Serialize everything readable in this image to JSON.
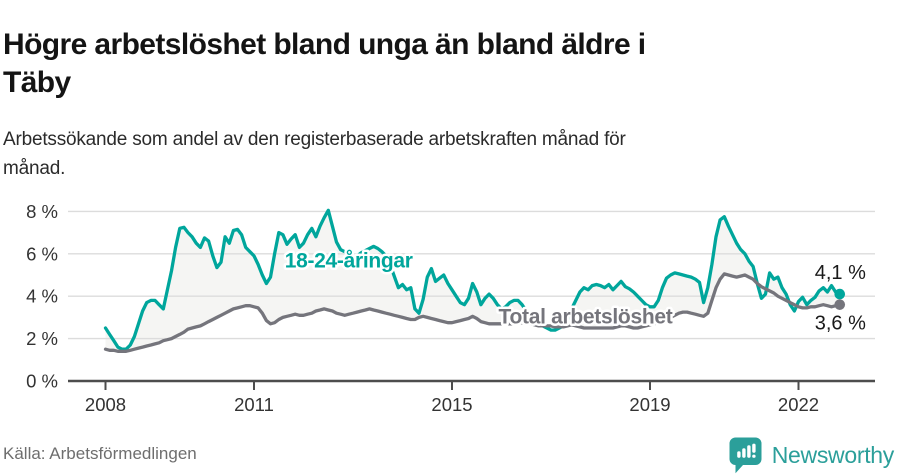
{
  "header": {
    "title": "Högre arbetslöshet bland unga än bland äldre i Täby",
    "title_lines": [
      "Högre arbetslöshet bland unga än bland äldre i",
      "Täby"
    ],
    "subtitle": "Arbetssökande som andel av den registerbaserade arbetskraften månad för månad.",
    "subtitle_lines": [
      "Arbetssökande som andel av den registerbaserade arbetskraften månad för",
      "månad."
    ]
  },
  "footer": {
    "source": "Källa: Arbetsförmedlingen",
    "brand_name": "Newsworthy",
    "brand_icon": "newsworthy-speech-bubble-bars-icon"
  },
  "colors": {
    "youth_teal": "#00a69c",
    "total_gray": "#75757c",
    "fill_between": "#f5f5f3",
    "grid": "#dcdcdc",
    "axis": "#4d4d4d",
    "tick_text": "#333333",
    "brand_teal": "#2b9f9a",
    "end_label_text": "#1a1a1a"
  },
  "chart_data": {
    "type": "line",
    "title": "Högre arbetslöshet bland unga än bland äldre i Täby",
    "xlabel": "",
    "ylabel": "Arbetssökande som andel av den registerbaserade arbetskraften",
    "x_unit": "month",
    "x_range_years": [
      2008.0,
      2022.917
    ],
    "interval": "monthly, Jan 2008 – Nov 2022",
    "ylim": [
      0,
      8.5
    ],
    "grid": true,
    "grid_values": [
      2,
      4,
      6,
      8
    ],
    "y_ticks": [
      {
        "value": 0,
        "label": "0 %"
      },
      {
        "value": 2,
        "label": "2 %"
      },
      {
        "value": 4,
        "label": "4 %"
      },
      {
        "value": 6,
        "label": "6 %"
      },
      {
        "value": 8,
        "label": "8 %"
      }
    ],
    "x_ticks": [
      {
        "value": 2008,
        "label": "2008"
      },
      {
        "value": 2011,
        "label": "2011"
      },
      {
        "value": 2015,
        "label": "2015"
      },
      {
        "value": 2019,
        "label": "2019"
      },
      {
        "value": 2022,
        "label": "2022"
      }
    ],
    "legend_position": "inline-labels",
    "series": [
      {
        "name": "18-24-åringar",
        "color": "#00a69c",
        "end_label": "4,1 %",
        "end_value": 4.1,
        "label_pos": {
          "x": 2011.62,
          "y": 5.35
        },
        "start_year": 2008,
        "values": [
          2.5,
          2.2,
          1.9,
          1.6,
          1.5,
          1.5,
          1.7,
          2.1,
          2.7,
          3.3,
          3.7,
          3.8,
          3.8,
          3.6,
          3.4,
          4.3,
          5.2,
          6.3,
          7.2,
          7.25,
          7.0,
          6.8,
          6.5,
          6.3,
          6.75,
          6.6,
          5.9,
          5.35,
          5.6,
          6.8,
          6.5,
          7.1,
          7.15,
          6.9,
          6.3,
          6.1,
          5.9,
          5.5,
          5.0,
          4.6,
          4.9,
          6.0,
          7.0,
          6.9,
          6.45,
          6.7,
          6.9,
          6.3,
          6.5,
          6.9,
          7.2,
          6.8,
          7.3,
          7.7,
          8.05,
          7.3,
          6.55,
          6.2,
          6.1,
          6.0,
          5.8,
          5.9,
          6.05,
          6.15,
          6.25,
          6.35,
          6.25,
          6.1,
          5.9,
          5.5,
          4.95,
          4.4,
          4.55,
          4.3,
          4.4,
          3.4,
          3.2,
          3.85,
          4.9,
          5.3,
          4.7,
          4.85,
          5.0,
          4.6,
          4.3,
          4.0,
          3.7,
          3.6,
          3.9,
          4.6,
          4.2,
          3.6,
          3.9,
          4.1,
          3.9,
          3.6,
          3.4,
          3.5,
          3.7,
          3.8,
          3.8,
          3.6,
          3.3,
          3.0,
          2.8,
          2.7,
          2.6,
          2.5,
          2.4,
          2.4,
          2.5,
          2.6,
          2.9,
          3.4,
          3.8,
          4.2,
          4.4,
          4.3,
          4.5,
          4.55,
          4.5,
          4.4,
          4.55,
          4.3,
          4.5,
          4.7,
          4.45,
          4.35,
          4.2,
          4.0,
          3.8,
          3.6,
          3.5,
          3.5,
          3.8,
          4.4,
          4.85,
          5.0,
          5.1,
          5.05,
          5.0,
          4.95,
          4.9,
          4.8,
          4.65,
          3.7,
          4.4,
          5.5,
          6.8,
          7.6,
          7.75,
          7.3,
          6.9,
          6.5,
          6.2,
          6.0,
          5.65,
          5.4,
          4.6,
          3.9,
          4.1,
          5.1,
          4.8,
          4.9,
          4.4,
          4.1,
          3.6,
          3.3,
          3.75,
          3.95,
          3.6,
          3.8,
          3.95,
          4.25,
          4.4,
          4.2,
          4.5,
          4.2,
          4.1
        ]
      },
      {
        "name": "Total arbetslöshet",
        "color": "#75757c",
        "end_label": "3,6 %",
        "end_value": 3.6,
        "label_pos": {
          "x": 2015.94,
          "y": 2.72
        },
        "start_year": 2008,
        "values": [
          1.5,
          1.45,
          1.45,
          1.4,
          1.4,
          1.4,
          1.45,
          1.5,
          1.55,
          1.6,
          1.65,
          1.7,
          1.75,
          1.8,
          1.9,
          1.95,
          2.0,
          2.1,
          2.2,
          2.3,
          2.45,
          2.5,
          2.55,
          2.6,
          2.7,
          2.8,
          2.9,
          3.0,
          3.1,
          3.2,
          3.3,
          3.4,
          3.45,
          3.5,
          3.55,
          3.55,
          3.5,
          3.45,
          3.2,
          2.85,
          2.7,
          2.75,
          2.9,
          3.0,
          3.05,
          3.1,
          3.15,
          3.1,
          3.1,
          3.15,
          3.2,
          3.3,
          3.35,
          3.4,
          3.35,
          3.3,
          3.2,
          3.15,
          3.1,
          3.15,
          3.2,
          3.25,
          3.3,
          3.35,
          3.4,
          3.35,
          3.3,
          3.25,
          3.2,
          3.15,
          3.1,
          3.05,
          3.0,
          2.95,
          2.9,
          2.9,
          3.0,
          3.05,
          3.0,
          2.95,
          2.9,
          2.85,
          2.8,
          2.75,
          2.75,
          2.8,
          2.85,
          2.9,
          2.95,
          3.05,
          2.95,
          2.8,
          2.75,
          2.7,
          2.7,
          2.7,
          2.7,
          2.7,
          2.7,
          2.7,
          2.72,
          2.75,
          2.72,
          2.7,
          2.65,
          2.6,
          2.6,
          2.6,
          2.6,
          2.55,
          2.55,
          2.55,
          2.6,
          2.65,
          2.6,
          2.55,
          2.5,
          2.5,
          2.5,
          2.5,
          2.5,
          2.5,
          2.5,
          2.5,
          2.55,
          2.6,
          2.6,
          2.55,
          2.5,
          2.5,
          2.55,
          2.6,
          2.65,
          2.7,
          2.75,
          2.8,
          2.9,
          3.0,
          3.1,
          3.2,
          3.25,
          3.25,
          3.2,
          3.15,
          3.1,
          3.05,
          3.2,
          3.8,
          4.4,
          4.8,
          5.05,
          5.0,
          4.95,
          4.9,
          4.95,
          5.0,
          4.9,
          4.8,
          4.6,
          4.45,
          4.35,
          4.25,
          4.15,
          4.0,
          3.9,
          3.8,
          3.7,
          3.6,
          3.5,
          3.45,
          3.45,
          3.5,
          3.5,
          3.55,
          3.6,
          3.55,
          3.5,
          3.55,
          3.6
        ]
      }
    ]
  }
}
